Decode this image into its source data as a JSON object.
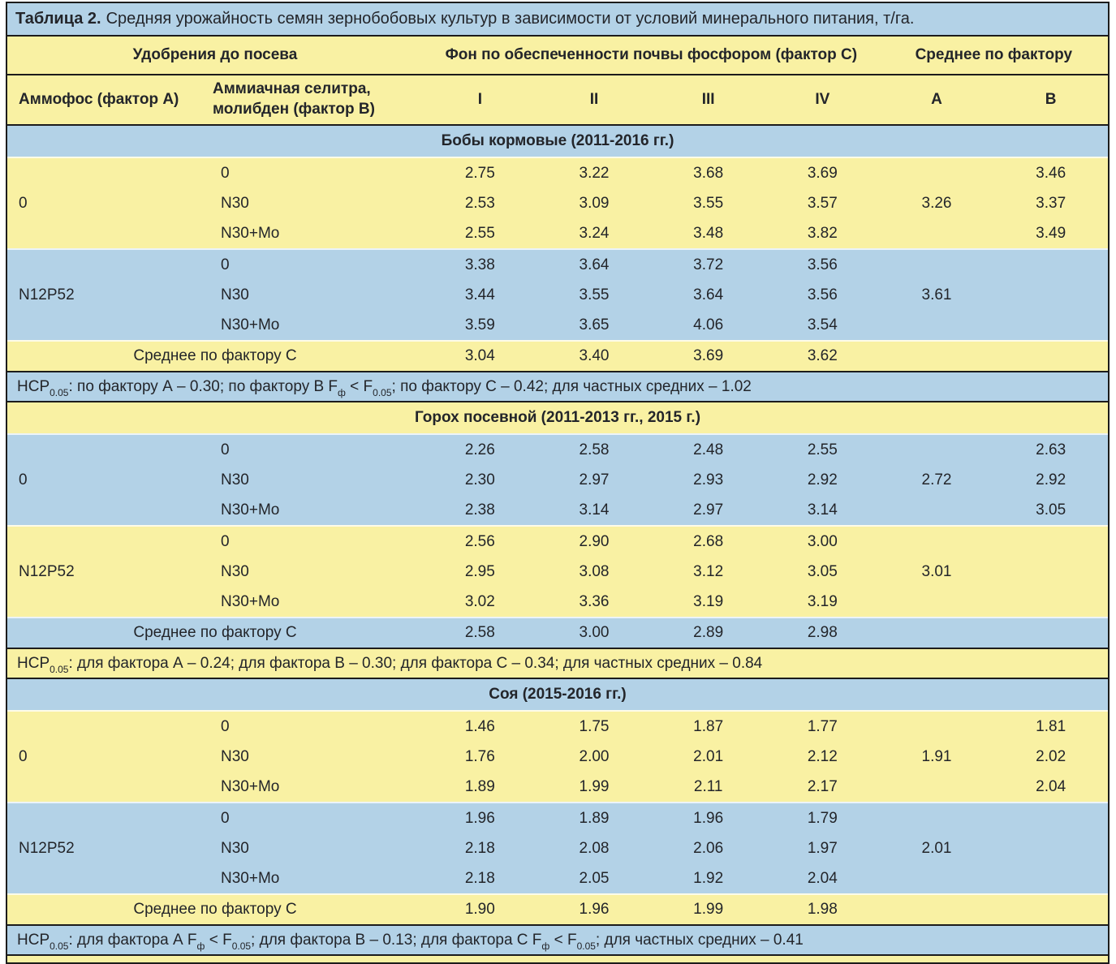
{
  "title": {
    "prefix": "Таблица 2.",
    "text": "Средняя урожайность семян зернобобовых культур в зависимости от условий минерального питания, т/га."
  },
  "header": {
    "group_fertilizers": "Удобрения до посева",
    "group_phosphorus": "Фон по обеспеченности почвы фосфором (фактор С)",
    "group_average": "Среднее по фактору",
    "col_factor_a": "Аммофос (фактор А)",
    "col_factor_b_line1": "Аммиачная селитра,",
    "col_factor_b_line2": "молибден (фактор В)",
    "value_cols": [
      "I",
      "II",
      "III",
      "IV",
      "А",
      "В"
    ]
  },
  "colors": {
    "blue": "#b3d2e7",
    "yellow": "#f9f1a3",
    "line": "#1c1c1c"
  },
  "chart_data": {
    "type": "table",
    "note": "values are seed yields, t/ha"
  },
  "sections": [
    {
      "name": "Бобы кормовые (2011-2016 гг.)",
      "tones": {
        "header": "blue"
      },
      "blocks": [
        {
          "factor_a": "0",
          "tone": "yellow",
          "rows": [
            {
              "factor_b": "0",
              "values": [
                "2.75",
                "3.22",
                "3.68",
                "3.69",
                "",
                "3.46"
              ]
            },
            {
              "factor_b": "N30",
              "values": [
                "2.53",
                "3.09",
                "3.55",
                "3.57",
                "3.26",
                "3.37"
              ]
            },
            {
              "factor_b": "N30+Mo",
              "values": [
                "2.55",
                "3.24",
                "3.48",
                "3.82",
                "",
                "3.49"
              ]
            }
          ]
        },
        {
          "factor_a": "N12P52",
          "tone": "blue",
          "rows": [
            {
              "factor_b": "0",
              "values": [
                "3.38",
                "3.64",
                "3.72",
                "3.56",
                "",
                ""
              ]
            },
            {
              "factor_b": "N30",
              "values": [
                "3.44",
                "3.55",
                "3.64",
                "3.56",
                "3.61",
                ""
              ]
            },
            {
              "factor_b": "N30+Mo",
              "values": [
                "3.59",
                "3.65",
                "4.06",
                "3.54",
                "",
                ""
              ]
            }
          ]
        }
      ],
      "mean": {
        "label": "Среднее по фактору С",
        "tone": "yellow",
        "values": [
          "3.04",
          "3.40",
          "3.69",
          "3.62",
          "",
          ""
        ]
      },
      "hcp": {
        "tone": "blue",
        "segments": [
          {
            "t": "НСР"
          },
          {
            "s": "0.05"
          },
          {
            "t": ": по фактору А – 0.30; по фактору В F"
          },
          {
            "s": "ф"
          },
          {
            "t": " < F"
          },
          {
            "s": "0.05"
          },
          {
            "t": "; по фактору С – 0.42; для частных средних – 1.02"
          }
        ]
      }
    },
    {
      "name": "Горох посевной (2011-2013 гг., 2015 г.)",
      "tones": {
        "header": "yellow"
      },
      "blocks": [
        {
          "factor_a": "0",
          "tone": "blue",
          "rows": [
            {
              "factor_b": "0",
              "values": [
                "2.26",
                "2.58",
                "2.48",
                "2.55",
                "",
                "2.63"
              ]
            },
            {
              "factor_b": "N30",
              "values": [
                "2.30",
                "2.97",
                "2.93",
                "2.92",
                "2.72",
                "2.92"
              ]
            },
            {
              "factor_b": "N30+Mo",
              "values": [
                "2.38",
                "3.14",
                "2.97",
                "3.14",
                "",
                "3.05"
              ]
            }
          ]
        },
        {
          "factor_a": "N12P52",
          "tone": "yellow",
          "rows": [
            {
              "factor_b": "0",
              "values": [
                "2.56",
                "2.90",
                "2.68",
                "3.00",
                "",
                ""
              ]
            },
            {
              "factor_b": "N30",
              "values": [
                "2.95",
                "3.08",
                "3.12",
                "3.05",
                "3.01",
                ""
              ]
            },
            {
              "factor_b": "N30+Mo",
              "values": [
                "3.02",
                "3.36",
                "3.19",
                "3.19",
                "",
                ""
              ]
            }
          ]
        }
      ],
      "mean": {
        "label": "Среднее по фактору С",
        "tone": "blue",
        "values": [
          "2.58",
          "3.00",
          "2.89",
          "2.98",
          "",
          ""
        ]
      },
      "hcp": {
        "tone": "yellow",
        "segments": [
          {
            "t": "НСР"
          },
          {
            "s": "0.05"
          },
          {
            "t": ": для фактора А – 0.24; для фактора В – 0.30; для фактора С – 0.34; для частных средних – 0.84"
          }
        ]
      }
    },
    {
      "name": "Соя (2015-2016 гг.)",
      "tones": {
        "header": "blue"
      },
      "blocks": [
        {
          "factor_a": "0",
          "tone": "yellow",
          "rows": [
            {
              "factor_b": "0",
              "values": [
                "1.46",
                "1.75",
                "1.87",
                "1.77",
                "",
                "1.81"
              ]
            },
            {
              "factor_b": "N30",
              "values": [
                "1.76",
                "2.00",
                "2.01",
                "2.12",
                "1.91",
                "2.02"
              ]
            },
            {
              "factor_b": "N30+Mo",
              "values": [
                "1.89",
                "1.99",
                "2.11",
                "2.17",
                "",
                "2.04"
              ]
            }
          ]
        },
        {
          "factor_a": "N12P52",
          "tone": "blue",
          "rows": [
            {
              "factor_b": "0",
              "values": [
                "1.96",
                "1.89",
                "1.96",
                "1.79",
                "",
                ""
              ]
            },
            {
              "factor_b": "N30",
              "values": [
                "2.18",
                "2.08",
                "2.06",
                "1.97",
                "2.01",
                ""
              ]
            },
            {
              "factor_b": "N30+Mo",
              "values": [
                "2.18",
                "2.05",
                "1.92",
                "2.04",
                "",
                ""
              ]
            }
          ]
        }
      ],
      "mean": {
        "label": "Среднее по фактору С",
        "tone": "yellow",
        "values": [
          "1.90",
          "1.96",
          "1.99",
          "1.98",
          "",
          ""
        ]
      },
      "hcp": {
        "tone": "blue",
        "segments": [
          {
            "t": "НСР"
          },
          {
            "s": "0.05"
          },
          {
            "t": ": для фактора А F"
          },
          {
            "s": "ф"
          },
          {
            "t": " < F"
          },
          {
            "s": "0.05"
          },
          {
            "t": "; для фактора В – 0.13; для фактора С F"
          },
          {
            "s": "ф"
          },
          {
            "t": " < F"
          },
          {
            "s": "0.05"
          },
          {
            "t": "; для частных средних – 0.41"
          }
        ]
      }
    }
  ]
}
